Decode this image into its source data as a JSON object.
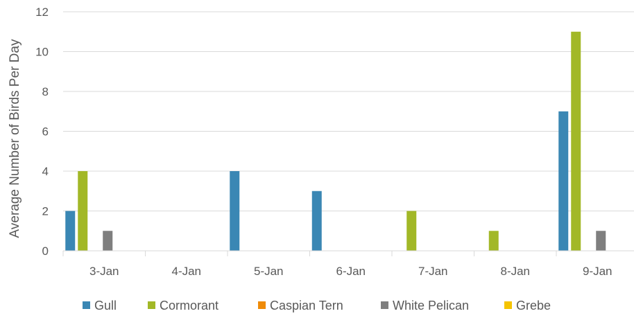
{
  "chart_data": {
    "type": "bar",
    "ylabel": "Average Number of Birds Per Day",
    "xlabel": "",
    "ylim": [
      0,
      12
    ],
    "y_ticks": [
      0,
      2,
      4,
      6,
      8,
      10,
      12
    ],
    "grid": true,
    "legend_position": "bottom",
    "categories": [
      "3-Jan",
      "4-Jan",
      "5-Jan",
      "6-Jan",
      "7-Jan",
      "8-Jan",
      "9-Jan"
    ],
    "series": [
      {
        "name": "Gull",
        "color": "#3a87b4",
        "values": [
          2,
          0,
          4,
          3,
          0,
          0,
          7
        ]
      },
      {
        "name": "Cormorant",
        "color": "#a2b827",
        "values": [
          4,
          0,
          0,
          0,
          2,
          1,
          11
        ]
      },
      {
        "name": "Caspian Tern",
        "color": "#ef8b08",
        "values": [
          0,
          0,
          0,
          0,
          0,
          0,
          0
        ]
      },
      {
        "name": "White Pelican",
        "color": "#7f7f7f",
        "values": [
          1,
          0,
          0,
          0,
          0,
          0,
          1
        ]
      },
      {
        "name": "Grebe",
        "color": "#f5c400",
        "values": [
          0,
          0,
          0,
          0,
          0,
          0,
          0
        ]
      }
    ]
  }
}
